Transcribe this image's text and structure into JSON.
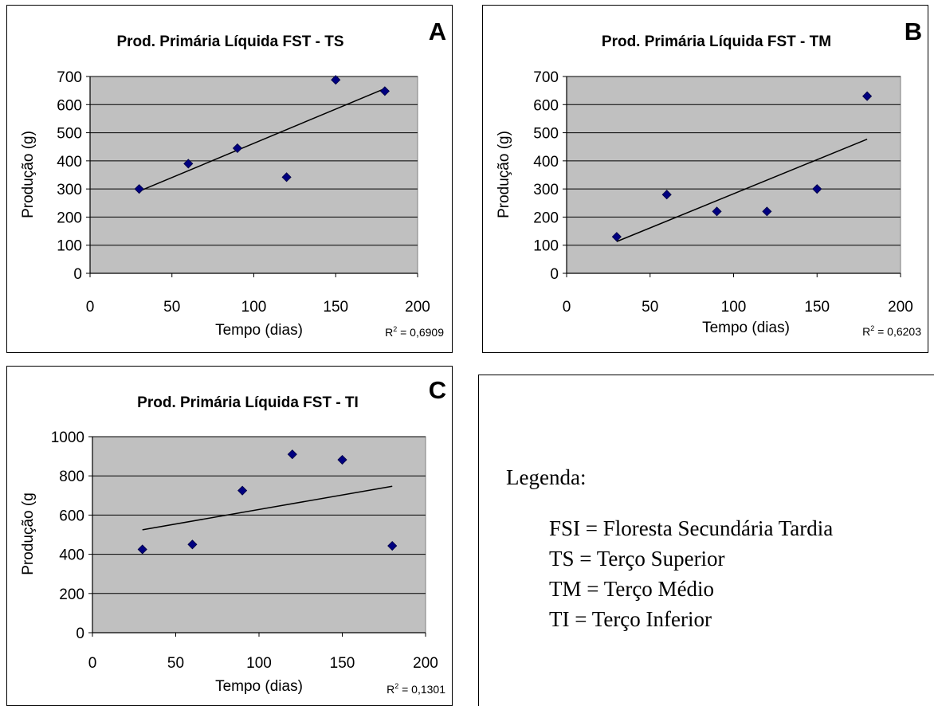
{
  "chart_data": [
    {
      "type": "scatter",
      "panel_letter": "A",
      "title": "Prod. Primária Líquida FST - TS",
      "xlabel": "Tempo (dias)",
      "ylabel": "Produção (g)",
      "xlim": [
        0,
        200
      ],
      "ylim": [
        0,
        700
      ],
      "xticks": [
        0,
        50,
        100,
        150,
        200
      ],
      "yticks": [
        0,
        100,
        200,
        300,
        400,
        500,
        600,
        700
      ],
      "grid": "horizontal",
      "plot_background": "#c0c0c0",
      "marker_color": "#000080",
      "points": [
        {
          "x": 30,
          "y": 300
        },
        {
          "x": 60,
          "y": 390
        },
        {
          "x": 90,
          "y": 445
        },
        {
          "x": 120,
          "y": 342
        },
        {
          "x": 150,
          "y": 688
        },
        {
          "x": 180,
          "y": 648
        }
      ],
      "trendline": {
        "x0": 30,
        "y0": 292,
        "x1": 180,
        "y1": 657
      },
      "r2_prefix": "R",
      "r2_sup": "2",
      "r2_value": " = 0,6909"
    },
    {
      "type": "scatter",
      "panel_letter": "B",
      "title": "Prod. Primária Líquida FST - TM",
      "xlabel": "Tempo (dias)",
      "ylabel": "Produção (g)",
      "xlim": [
        0,
        200
      ],
      "ylim": [
        0,
        700
      ],
      "xticks": [
        0,
        50,
        100,
        150,
        200
      ],
      "yticks": [
        0,
        100,
        200,
        300,
        400,
        500,
        600,
        700
      ],
      "grid": "horizontal",
      "plot_background": "#c0c0c0",
      "marker_color": "#000080",
      "points": [
        {
          "x": 30,
          "y": 130
        },
        {
          "x": 60,
          "y": 280
        },
        {
          "x": 90,
          "y": 220
        },
        {
          "x": 120,
          "y": 220
        },
        {
          "x": 150,
          "y": 300
        },
        {
          "x": 180,
          "y": 630
        }
      ],
      "trendline": {
        "x0": 30,
        "y0": 113,
        "x1": 180,
        "y1": 477
      },
      "r2_prefix": "R",
      "r2_sup": "2",
      "r2_value": " = 0,6203"
    },
    {
      "type": "scatter",
      "panel_letter": "C",
      "title": "Prod. Primária Líquida FST - TI",
      "xlabel": "Tempo (dias)",
      "ylabel": "Produção (g",
      "xlim": [
        0,
        200
      ],
      "ylim": [
        0,
        1000
      ],
      "xticks": [
        0,
        50,
        100,
        150,
        200
      ],
      "yticks": [
        0,
        200,
        400,
        600,
        800,
        1000
      ],
      "grid": "horizontal",
      "plot_background": "#c0c0c0",
      "marker_color": "#000080",
      "points": [
        {
          "x": 30,
          "y": 425
        },
        {
          "x": 60,
          "y": 450
        },
        {
          "x": 90,
          "y": 725
        },
        {
          "x": 120,
          "y": 910
        },
        {
          "x": 150,
          "y": 882
        },
        {
          "x": 180,
          "y": 443
        }
      ],
      "trendline": {
        "x0": 30,
        "y0": 525,
        "x1": 180,
        "y1": 747
      },
      "r2_prefix": "R",
      "r2_sup": "2",
      "r2_value": " = 0,1301"
    }
  ],
  "legend": {
    "title": "Legenda:",
    "items": [
      "FSI = Floresta Secundária Tardia",
      "TS = Terço Superior",
      "TM = Terço Médio",
      "TI = Terço Inferior"
    ]
  }
}
